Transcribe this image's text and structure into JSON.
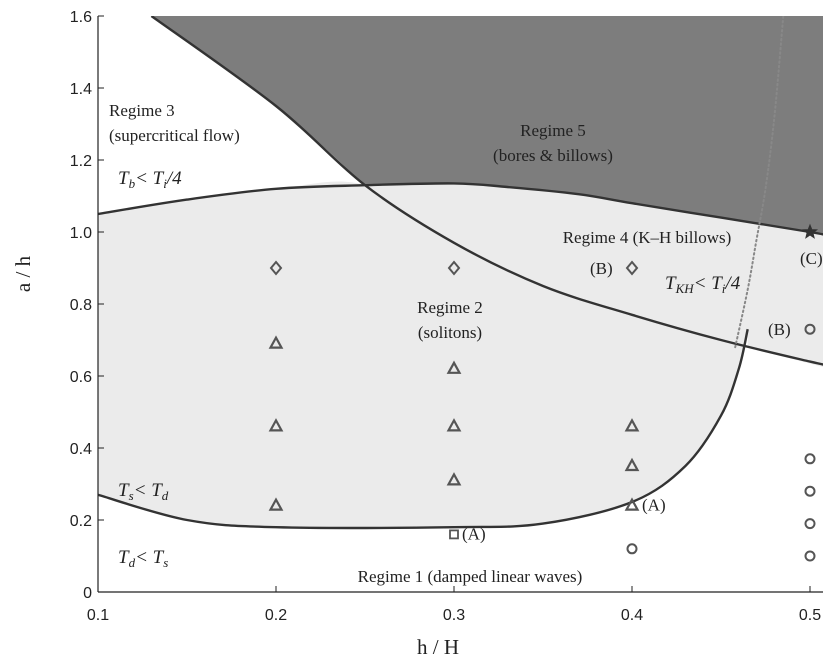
{
  "chart_data": {
    "type": "scatter",
    "xlabel": "h / H",
    "ylabel": "a / h",
    "xlim": [
      0.1,
      0.5
    ],
    "ylim": [
      0,
      1.6
    ],
    "x_ticks": [
      "0.1",
      "0.2",
      "0.3",
      "0.4",
      "0.5"
    ],
    "y_ticks": [
      "0",
      "0.2",
      "0.4",
      "0.6",
      "0.8",
      "1.0",
      "1.2",
      "1.4",
      "1.6"
    ],
    "regions": [
      {
        "name": "Regime 1",
        "label": "Regime 1 (damped linear waves)",
        "fill": "#ffffff"
      },
      {
        "name": "Regime 2",
        "label_lines": [
          "Regime 2",
          "(solitons)"
        ],
        "fill": "#ebebeb"
      },
      {
        "name": "Regime 3",
        "label_lines": [
          "Regime 3",
          "(supercritical flow)"
        ],
        "fill": "#ffffff"
      },
      {
        "name": "Regime 4",
        "label": "Regime 4 (K–H billows)",
        "fill": "#ebebeb"
      },
      {
        "name": "Regime 5",
        "label_lines": [
          "Regime 5",
          "(bores & billows)"
        ],
        "fill": "#7d7d7d"
      }
    ],
    "inequalities": [
      {
        "text": "Tb < Ti/4",
        "parts": [
          [
            "T",
            ""
          ],
          [
            "b",
            "sub"
          ],
          [
            "< ",
            ""
          ],
          [
            "T",
            ""
          ],
          [
            "i",
            "sub"
          ],
          [
            "/4",
            ""
          ]
        ]
      },
      {
        "text": "TKH < Ti/4",
        "parts": [
          [
            "T",
            ""
          ],
          [
            "KH",
            "sub"
          ],
          [
            "< ",
            ""
          ],
          [
            "T",
            ""
          ],
          [
            "i",
            "sub"
          ],
          [
            "/4",
            ""
          ]
        ]
      },
      {
        "text": "Ts < Td",
        "parts": [
          [
            "T",
            ""
          ],
          [
            "s",
            "sub"
          ],
          [
            "< ",
            ""
          ],
          [
            "T",
            ""
          ],
          [
            "d",
            "sub"
          ]
        ]
      },
      {
        "text": "Td < Ts",
        "parts": [
          [
            "T",
            ""
          ],
          [
            "d",
            "sub"
          ],
          [
            "< ",
            ""
          ],
          [
            "T",
            ""
          ],
          [
            "s",
            "sub"
          ]
        ]
      }
    ],
    "boundaries": [
      {
        "name": "regime5-lower",
        "style": "solid",
        "x": [
          0.13,
          0.2,
          0.25,
          0.3,
          0.35,
          0.4,
          0.45,
          0.5,
          0.51
        ],
        "y": [
          1.6,
          1.35,
          1.13,
          0.97,
          0.85,
          0.77,
          0.7,
          0.64,
          0.63
        ]
      },
      {
        "name": "regime3-lower",
        "style": "solid",
        "x": [
          0.1,
          0.15,
          0.2,
          0.25,
          0.3,
          0.33,
          0.37,
          0.4,
          0.45,
          0.5,
          0.51
        ],
        "y": [
          1.05,
          1.09,
          1.12,
          1.13,
          1.135,
          1.125,
          1.105,
          1.08,
          1.04,
          1.0,
          0.99
        ]
      },
      {
        "name": "regime2-lower",
        "style": "solid",
        "x": [
          0.1,
          0.15,
          0.2,
          0.3,
          0.35,
          0.4,
          0.43,
          0.45,
          0.46,
          0.465
        ],
        "y": [
          0.27,
          0.2,
          0.18,
          0.18,
          0.19,
          0.25,
          0.35,
          0.49,
          0.62,
          0.73
        ]
      },
      {
        "name": "regime4-right",
        "style": "dotted",
        "x": [
          0.458,
          0.465,
          0.47,
          0.475,
          0.48,
          0.485
        ],
        "y": [
          0.68,
          0.84,
          0.98,
          1.12,
          1.32,
          1.6
        ]
      }
    ],
    "series": [
      {
        "marker": "diamond",
        "points": [
          [
            0.2,
            0.9
          ],
          [
            0.3,
            0.9
          ],
          [
            0.4,
            0.9
          ]
        ]
      },
      {
        "marker": "triangle",
        "points": [
          [
            0.2,
            0.69
          ],
          [
            0.2,
            0.46
          ],
          [
            0.2,
            0.24
          ],
          [
            0.3,
            0.62
          ],
          [
            0.3,
            0.46
          ],
          [
            0.3,
            0.31
          ],
          [
            0.4,
            0.46
          ],
          [
            0.4,
            0.35
          ],
          [
            0.4,
            0.24
          ]
        ]
      },
      {
        "marker": "square",
        "points": [
          [
            0.3,
            0.16
          ]
        ]
      },
      {
        "marker": "circle",
        "points": [
          [
            0.4,
            0.12
          ],
          [
            0.5,
            0.73
          ],
          [
            0.5,
            0.37
          ],
          [
            0.5,
            0.28
          ],
          [
            0.5,
            0.19
          ],
          [
            0.5,
            0.1
          ]
        ]
      },
      {
        "marker": "star",
        "points": [
          [
            0.5,
            1.0
          ]
        ]
      }
    ],
    "point_labels": [
      {
        "text": "(A)",
        "x": 0.3,
        "y": 0.16
      },
      {
        "text": "(A)",
        "x": 0.4,
        "y": 0.24
      },
      {
        "text": "(B)",
        "x": 0.4,
        "y": 0.9
      },
      {
        "text": "(B)",
        "x": 0.5,
        "y": 0.73
      },
      {
        "text": "(C)",
        "x": 0.5,
        "y": 1.0
      }
    ]
  }
}
